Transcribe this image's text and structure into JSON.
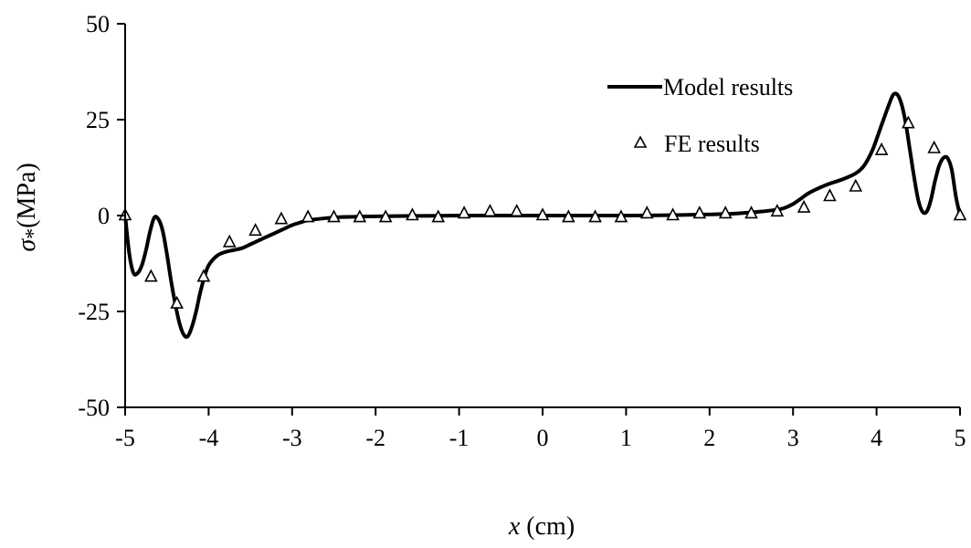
{
  "chart_data": {
    "type": "line",
    "title": "",
    "xlabel_var": "x",
    "xlabel_unit": " (cm)",
    "ylabel_var": "σ",
    "ylabel_sub": "*",
    "ylabel_unit": "(MPa)",
    "xlim": [
      -5,
      5
    ],
    "ylim": [
      -50,
      50
    ],
    "x_ticks": [
      -5,
      -4,
      -3,
      -2,
      -1,
      0,
      1,
      2,
      3,
      4,
      5
    ],
    "x_tick_labels": [
      "-5",
      "-4",
      "-3",
      "-2",
      "-1",
      "0",
      "1",
      "2",
      "3",
      "4",
      "5"
    ],
    "y_ticks": [
      50,
      25,
      0,
      -25,
      -50
    ],
    "y_tick_labels": [
      "50",
      "25",
      "0",
      "-25",
      "-50"
    ],
    "grid": false,
    "legend_position": "top-right",
    "series": [
      {
        "name": "Model results",
        "style": "line",
        "color": "#000000",
        "x": [
          -5.0,
          -4.95,
          -4.9,
          -4.85,
          -4.8,
          -4.75,
          -4.7,
          -4.65,
          -4.6,
          -4.55,
          -4.5,
          -4.45,
          -4.4,
          -4.35,
          -4.3,
          -4.25,
          -4.2,
          -4.15,
          -4.1,
          -4.05,
          -4.0,
          -3.9,
          -3.8,
          -3.7,
          -3.6,
          -3.5,
          -3.4,
          -3.3,
          -3.2,
          -3.1,
          -3.0,
          -2.9,
          -2.8,
          -2.6,
          -2.4,
          -2.0,
          -1.5,
          -1.0,
          -0.5,
          0.0,
          0.5,
          1.0,
          1.5,
          2.0,
          2.3,
          2.6,
          2.8,
          2.9,
          3.0,
          3.1,
          3.2,
          3.4,
          3.6,
          3.75,
          3.85,
          3.95,
          4.05,
          4.15,
          4.2,
          4.25,
          4.3,
          4.35,
          4.4,
          4.45,
          4.5,
          4.55,
          4.6,
          4.65,
          4.7,
          4.75,
          4.8,
          4.85,
          4.9,
          4.95,
          5.0
        ],
        "y": [
          0,
          -10,
          -15,
          -15,
          -13,
          -9,
          -4,
          -0.5,
          -1,
          -4,
          -10,
          -17,
          -23,
          -28,
          -31,
          -31.5,
          -29,
          -25,
          -20,
          -16,
          -13,
          -10.5,
          -9.5,
          -9,
          -8.5,
          -7.5,
          -6.5,
          -5.5,
          -4.5,
          -3.5,
          -2.5,
          -1.8,
          -1.2,
          -0.7,
          -0.4,
          -0.2,
          -0.1,
          0,
          0,
          0,
          0,
          0,
          0.1,
          0.3,
          0.5,
          1.0,
          1.5,
          2.0,
          3.0,
          4.5,
          6.0,
          8.0,
          9.5,
          11,
          13,
          17,
          23,
          29,
          31.5,
          31.5,
          29,
          24,
          17,
          10,
          4,
          1,
          1,
          4,
          9,
          13,
          15,
          15,
          12,
          5,
          0
        ]
      },
      {
        "name": "FE results",
        "style": "marker",
        "marker": "triangle-open",
        "color": "#000000",
        "x": [
          -5.0,
          -4.69,
          -4.38,
          -4.06,
          -3.75,
          -3.44,
          -3.13,
          -2.81,
          -2.5,
          -2.19,
          -1.88,
          -1.56,
          -1.25,
          -0.94,
          -0.63,
          -0.31,
          0.0,
          0.31,
          0.63,
          0.94,
          1.25,
          1.56,
          1.88,
          2.19,
          2.5,
          2.81,
          3.13,
          3.44,
          3.75,
          4.06,
          4.38,
          4.69,
          5.0
        ],
        "y": [
          0,
          -16,
          -23,
          -16,
          -7,
          -4,
          -1,
          -0.5,
          -0.5,
          -0.5,
          -0.5,
          0,
          -0.5,
          0.5,
          1,
          1,
          0,
          -0.5,
          -0.5,
          -0.5,
          0.5,
          0,
          0.5,
          0.5,
          0.5,
          1,
          2,
          5,
          7.5,
          17,
          24,
          17.5,
          0
        ]
      }
    ]
  }
}
